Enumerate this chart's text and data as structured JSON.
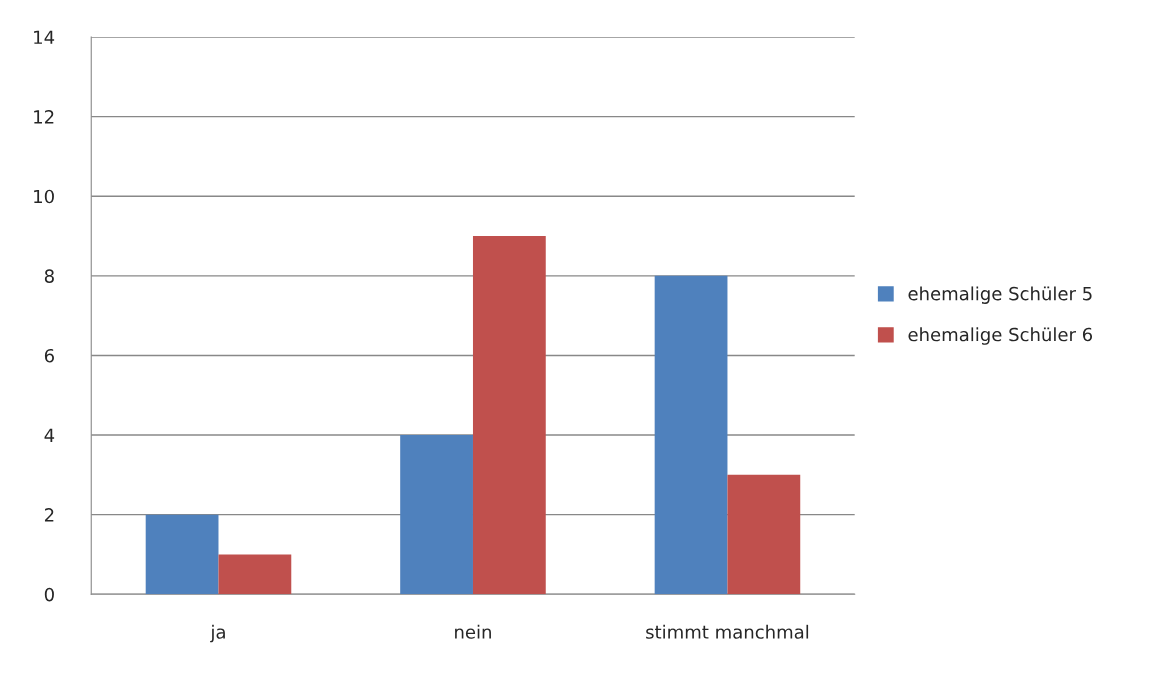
{
  "chart_data": {
    "type": "bar",
    "categories": [
      "ja",
      "nein",
      "stimmt manchmal"
    ],
    "series": [
      {
        "name": "ehemalige Schüler 5",
        "color": "#4f81bd",
        "values": [
          2,
          4,
          8
        ]
      },
      {
        "name": "ehemalige Schüler 6",
        "color": "#c0504d",
        "values": [
          1,
          9,
          3
        ]
      }
    ],
    "ylim": [
      0,
      14
    ],
    "yticks": [
      0,
      2,
      4,
      6,
      8,
      10,
      12,
      14
    ],
    "grid": "y",
    "legend": "right"
  }
}
